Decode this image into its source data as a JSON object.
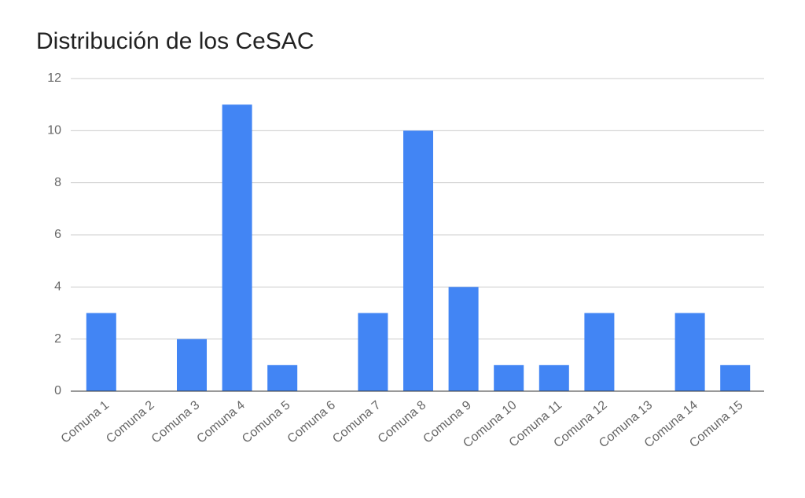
{
  "chart_data": {
    "type": "bar",
    "title": "Distribución de los CeSAC",
    "categories": [
      "Comuna 1",
      "Comuna 2",
      "Comuna 3",
      "Comuna 4",
      "Comuna 5",
      "Comuna 6",
      "Comuna 7",
      "Comuna 8",
      "Comuna 9",
      "Comuna 10",
      "Comuna 11",
      "Comuna 12",
      "Comuna 13",
      "Comuna 14",
      "Comuna 15"
    ],
    "values": [
      3,
      0,
      2,
      11,
      1,
      0,
      3,
      10,
      4,
      1,
      1,
      3,
      0,
      3,
      1
    ],
    "color": "#4285f4",
    "ylim": [
      0,
      12
    ],
    "yticks": [
      0,
      2,
      4,
      6,
      8,
      10,
      12
    ],
    "grid": true
  }
}
